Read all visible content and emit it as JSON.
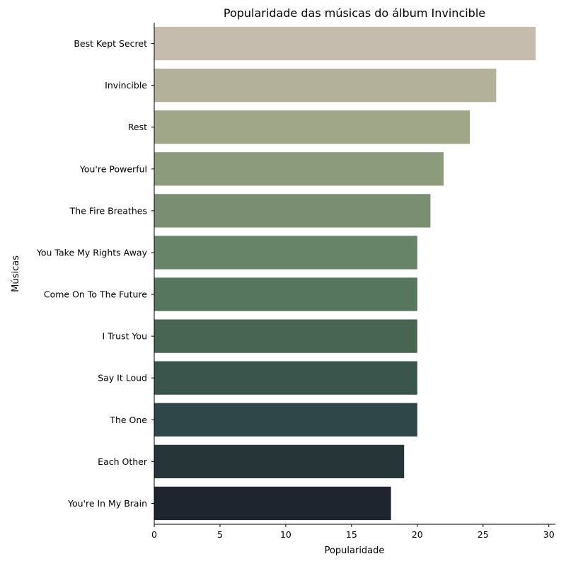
{
  "chart_data": {
    "type": "bar",
    "orientation": "horizontal",
    "title": "Popularidade das músicas do álbum Invincible",
    "xlabel": "Popularidade",
    "ylabel": "Músicas",
    "xlim": [
      0,
      30.5
    ],
    "xticks": [
      "0",
      "5",
      "10",
      "15",
      "20",
      "25",
      "30"
    ],
    "categories": [
      "Best Kept Secret",
      "Invincible",
      "Rest",
      "You're Powerful",
      "The Fire Breathes",
      "You Take My Rights Away",
      "Come On To The Future",
      "I Trust You",
      "Say It Loud",
      "The One",
      "Each Other",
      "You're In My Brain"
    ],
    "values": [
      29,
      26,
      24,
      22,
      21,
      20,
      20,
      20,
      20,
      20,
      19,
      18
    ],
    "colors": [
      "#c5bcae",
      "#b3b19a",
      "#a0a688",
      "#8c9b7c",
      "#7a8f72",
      "#678468",
      "#57765e",
      "#486553",
      "#3a564c",
      "#2f4749",
      "#263638",
      "#1f252e"
    ],
    "grid": false,
    "legend": "none"
  }
}
